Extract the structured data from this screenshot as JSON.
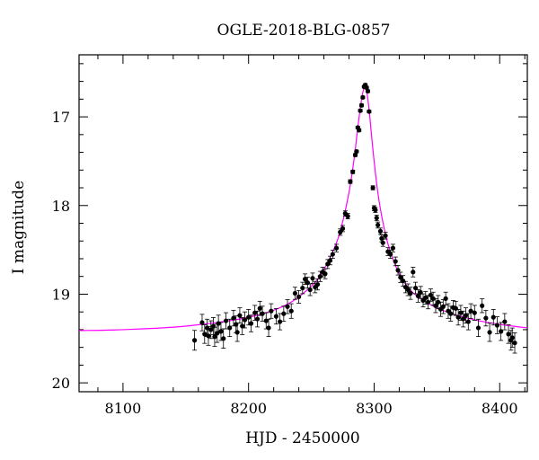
{
  "chart_data": {
    "type": "scatter",
    "title": "OGLE-2018-BLG-0857",
    "xlabel": "HJD - 2450000",
    "ylabel": "I magnitude",
    "xlim": [
      8065,
      8422
    ],
    "ylim": [
      20.1,
      16.3
    ],
    "y_inverted": true,
    "x_ticks": [
      8100,
      8200,
      8300,
      8400
    ],
    "x_tick_labels": [
      "8100",
      "8200",
      "8300",
      "8400"
    ],
    "y_ticks": [
      17,
      18,
      19,
      20
    ],
    "y_tick_labels": [
      "17",
      "18",
      "19",
      "20"
    ],
    "x_minor_step": 20,
    "y_minor_step": 0.2,
    "grid": false,
    "colors": {
      "data": "#000000",
      "model": "#ff00ff"
    },
    "model_curve": {
      "name": "",
      "color": "#ff00ff",
      "x": [
        8065,
        8100,
        8150,
        8200,
        8230,
        8250,
        8260,
        8270,
        8275,
        8280,
        8284,
        8287,
        8290,
        8292,
        8293,
        8294,
        8296,
        8298,
        8300,
        8303,
        8307,
        8312,
        8320,
        8330,
        8345,
        8360,
        8380,
        8400,
        8422
      ],
      "y": [
        19.41,
        19.4,
        19.36,
        19.26,
        19.12,
        18.91,
        18.72,
        18.42,
        18.18,
        17.85,
        17.48,
        17.12,
        16.8,
        16.67,
        16.66,
        16.7,
        16.92,
        17.22,
        17.5,
        17.86,
        18.19,
        18.48,
        18.77,
        18.97,
        19.12,
        19.21,
        19.29,
        19.34,
        19.38
      ]
    },
    "series": [
      {
        "name": "",
        "x": [
          8157,
          8163,
          8165,
          8167,
          8168,
          8170,
          8172,
          8173,
          8175,
          8176,
          8178,
          8180,
          8182,
          8185,
          8188,
          8190,
          8191,
          8193,
          8195,
          8197,
          8200,
          8202,
          8205,
          8207,
          8209,
          8211,
          8214,
          8216,
          8218,
          8222,
          8225,
          8228,
          8231,
          8234,
          8237,
          8240,
          8243,
          8245,
          8247,
          8249,
          8251,
          8253,
          8255,
          8257,
          8259,
          8261,
          8263,
          8265,
          8267,
          8270,
          8273,
          8275,
          8277,
          8279,
          8281,
          8283,
          8285,
          8286,
          8287,
          8288,
          8289,
          8290,
          8291,
          8292,
          8293,
          8294,
          8295,
          8296,
          8299,
          8300,
          8301,
          8302,
          8303,
          8305,
          8306,
          8307,
          8309,
          8311,
          8313,
          8315,
          8317,
          8319,
          8321,
          8323,
          8325,
          8327,
          8329,
          8331,
          8333,
          8335,
          8337,
          8339,
          8341,
          8343,
          8345,
          8347,
          8349,
          8351,
          8353,
          8355,
          8357,
          8359,
          8361,
          8363,
          8365,
          8367,
          8369,
          8371,
          8373,
          8375,
          8377,
          8380,
          8383,
          8386,
          8389,
          8392,
          8395,
          8398,
          8401,
          8404,
          8407,
          8409,
          8410,
          8412
        ],
        "y": [
          19.52,
          19.32,
          19.45,
          19.38,
          19.47,
          19.4,
          19.36,
          19.48,
          19.44,
          19.33,
          19.42,
          19.5,
          19.3,
          19.38,
          19.27,
          19.34,
          19.43,
          19.24,
          19.36,
          19.29,
          19.26,
          19.33,
          19.21,
          19.28,
          19.16,
          19.22,
          19.3,
          19.38,
          19.19,
          19.25,
          19.31,
          19.22,
          19.14,
          19.19,
          18.99,
          19.03,
          18.93,
          18.83,
          18.87,
          18.95,
          18.82,
          18.92,
          18.89,
          18.8,
          18.75,
          18.77,
          18.66,
          18.62,
          18.55,
          18.48,
          18.3,
          18.26,
          18.09,
          18.12,
          17.73,
          17.62,
          17.43,
          17.39,
          17.12,
          17.15,
          16.93,
          16.87,
          16.78,
          16.66,
          16.64,
          16.67,
          16.71,
          16.94,
          17.8,
          18.03,
          18.05,
          18.14,
          18.22,
          18.29,
          18.37,
          18.42,
          18.34,
          18.52,
          18.55,
          18.48,
          18.63,
          18.73,
          18.81,
          18.85,
          18.92,
          18.95,
          18.99,
          18.75,
          18.93,
          19.02,
          18.98,
          19.07,
          19.04,
          19.09,
          19.01,
          19.05,
          19.13,
          19.09,
          19.17,
          19.14,
          19.05,
          19.19,
          19.22,
          19.15,
          19.16,
          19.26,
          19.21,
          19.28,
          19.24,
          19.31,
          19.19,
          19.21,
          19.38,
          19.13,
          19.27,
          19.43,
          19.26,
          19.35,
          19.42,
          19.31,
          19.45,
          19.52,
          19.49,
          19.55
        ]
      }
    ]
  }
}
